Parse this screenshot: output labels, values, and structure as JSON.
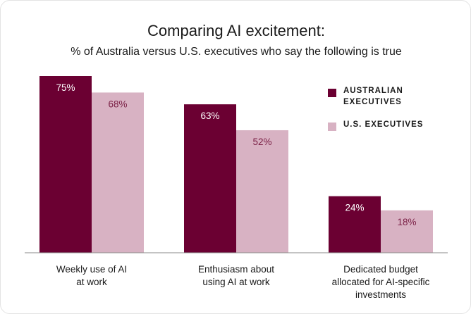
{
  "chart_data": {
    "type": "bar",
    "title": "Comparing AI excitement:",
    "subtitle": "% of Australia versus U.S. executives who say the following is true",
    "categories": [
      [
        "Weekly use of AI",
        "at work"
      ],
      [
        "Enthusiasm about",
        "using AI at work"
      ],
      [
        "Dedicated budget",
        "allocated for AI-specific",
        "investments"
      ]
    ],
    "series": [
      {
        "name": "AUSTRALIAN EXECUTIVES",
        "color": "#6b0032",
        "label_color": "#ffffff",
        "values": [
          75,
          63,
          24
        ],
        "labels": [
          "75%",
          "63%",
          "24%"
        ]
      },
      {
        "name": "U.S. EXECUTIVES",
        "color": "#d8b2c3",
        "label_color": "#7a1f45",
        "values": [
          68,
          52,
          18
        ],
        "labels": [
          "68%",
          "52%",
          "18%"
        ]
      }
    ],
    "ylim": [
      0,
      75
    ],
    "grid": false,
    "legend_position": "top-right"
  }
}
